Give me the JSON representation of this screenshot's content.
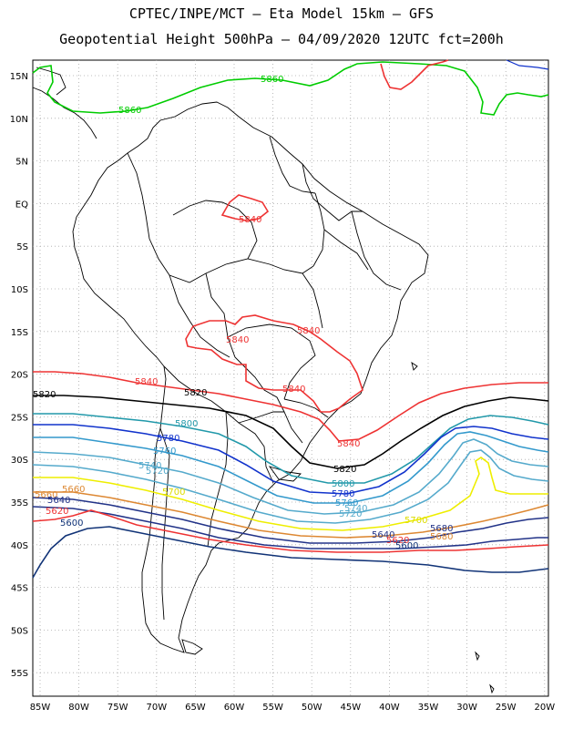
{
  "header": {
    "line1": "CPTEC/INPE/MCT  –  Eta Model 15km – GFS",
    "line2": "Geopotential Height 500hPa – 04/09/2020 12UTC fct=200h"
  },
  "axes": {
    "lat_labels": [
      "15N",
      "10N",
      "5N",
      "EQ",
      "5S",
      "10S",
      "15S",
      "20S",
      "25S",
      "30S",
      "35S",
      "40S",
      "45S",
      "50S",
      "55S"
    ],
    "lon_labels": [
      "85W",
      "80W",
      "75W",
      "70W",
      "65W",
      "60W",
      "55W",
      "50W",
      "45W",
      "40W",
      "35W",
      "30W",
      "25W",
      "20W"
    ]
  },
  "colors": {
    "c5860": "#00cc00",
    "c5840": "#ee3333",
    "c5820": "#000000",
    "c5800": "#2299aa",
    "c5780": "#1133cc",
    "c5760": "#3399cc",
    "c5740": "#55aacc",
    "c5720": "#55aacc",
    "c5700": "#eeee00",
    "c5680": "#ee9922",
    "c5660": "#dd8833",
    "c5640": "#223388",
    "c5620": "#ee3333",
    "c5600": "#113377",
    "coast": "#000000",
    "grid": "#aaaaaa"
  },
  "contour_labels": [
    {
      "text": "5860",
      "color": "#00cc00"
    },
    {
      "text": "5860",
      "color": "#00cc00"
    },
    {
      "text": "5840",
      "color": "#ee3333"
    },
    {
      "text": "5840",
      "color": "#ee3333"
    },
    {
      "text": "5840",
      "color": "#ee3333"
    },
    {
      "text": "5840",
      "color": "#ee3333"
    },
    {
      "text": "5840",
      "color": "#ee3333"
    },
    {
      "text": "5840",
      "color": "#ee3333"
    },
    {
      "text": "5820",
      "color": "#000000"
    },
    {
      "text": "5820",
      "color": "#000000"
    },
    {
      "text": "5820",
      "color": "#000000"
    },
    {
      "text": "5800",
      "color": "#2299aa"
    },
    {
      "text": "5800",
      "color": "#2299aa"
    },
    {
      "text": "5780",
      "color": "#1133cc"
    },
    {
      "text": "5780",
      "color": "#1133cc"
    },
    {
      "text": "5760",
      "color": "#3399cc"
    },
    {
      "text": "5760",
      "color": "#3399cc"
    },
    {
      "text": "5740",
      "color": "#55aacc"
    },
    {
      "text": "5740",
      "color": "#55aacc"
    },
    {
      "text": "5720",
      "color": "#55aacc"
    },
    {
      "text": "5720",
      "color": "#55aacc"
    },
    {
      "text": "5700",
      "color": "#dddd00"
    },
    {
      "text": "5700",
      "color": "#dddd00"
    },
    {
      "text": "5680",
      "color": "#223388"
    },
    {
      "text": "5680",
      "color": "#dd8833"
    },
    {
      "text": "5660",
      "color": "#dd8833"
    },
    {
      "text": "5660",
      "color": "#dd8833"
    },
    {
      "text": "5640",
      "color": "#223388"
    },
    {
      "text": "5640",
      "color": "#223388"
    },
    {
      "text": "5620",
      "color": "#ee3333"
    },
    {
      "text": "5620",
      "color": "#ee3333"
    },
    {
      "text": "5600",
      "color": "#113377"
    },
    {
      "text": "5600",
      "color": "#113377"
    }
  ]
}
